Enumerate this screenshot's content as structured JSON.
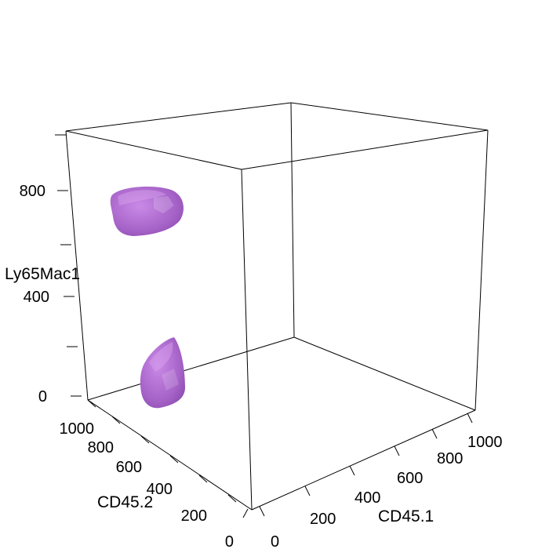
{
  "chart_data": {
    "type": "3d-density-surface",
    "x_axis": {
      "label": "CD45.1",
      "range": [
        0,
        1050
      ],
      "ticks": [
        "0",
        "200",
        "400",
        "600",
        "800",
        "1000"
      ]
    },
    "y_axis": {
      "label": "CD45.2",
      "range": [
        0,
        1050
      ],
      "ticks": [
        "0",
        "200",
        "400",
        "600",
        "800",
        "1000"
      ]
    },
    "z_axis": {
      "label": "Ly65Mac1",
      "range": [
        0,
        1000
      ],
      "ticks": [
        "0",
        "400",
        "800"
      ]
    },
    "surface_color": "#b06ed0",
    "clusters": [
      {
        "cd45_1": 40,
        "cd45_2": 950,
        "ly65mac1": 740
      },
      {
        "cd45_1": 30,
        "cd45_2": 900,
        "ly65mac1": 150
      }
    ]
  }
}
